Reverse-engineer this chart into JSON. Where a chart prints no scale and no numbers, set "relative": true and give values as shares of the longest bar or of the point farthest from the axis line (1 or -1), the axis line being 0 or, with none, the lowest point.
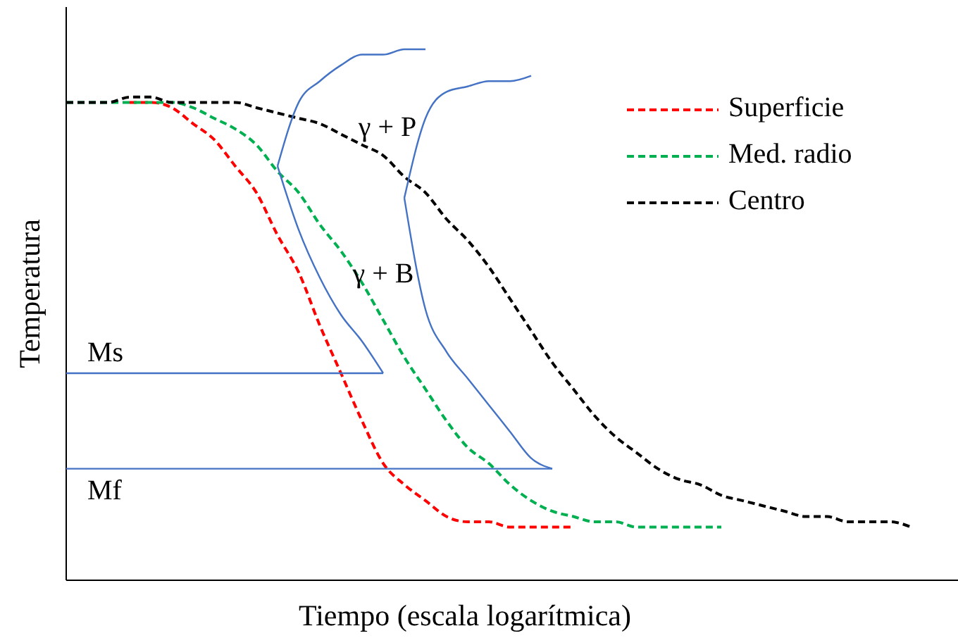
{
  "chart_data": {
    "type": "line",
    "relative": true,
    "xlabel": "Tiempo (escala logarítmica)",
    "ylabel": "Temperatura",
    "legend": "top right",
    "marker": "none",
    "categories": [
      null,
      null,
      null,
      null,
      null,
      null,
      null,
      null,
      null,
      null,
      null,
      null,
      null,
      null,
      null,
      null,
      null,
      null,
      null,
      null,
      null,
      null,
      null,
      null,
      null,
      null,
      null,
      null,
      null,
      null,
      null,
      null,
      null,
      null,
      null,
      null,
      null,
      null,
      null,
      null,
      null,
      null,
      null
    ],
    "series": [
      {
        "name": "Superficie",
        "color": "#ff0000",
        "line_style": "dashed",
        "values": [
          null,
          null,
          null,
          0.9,
          0.9,
          0.89,
          0.86,
          0.83,
          0.78,
          0.73,
          0.65,
          0.58,
          0.48,
          0.39,
          0.3,
          0.22,
          0.18,
          0.15,
          0.12,
          0.11,
          0.11,
          0.1,
          0.1,
          0.1,
          0.1,
          null,
          null,
          null,
          null,
          null,
          null,
          null,
          null,
          null,
          null,
          null,
          null,
          null,
          null,
          null,
          null,
          null,
          null
        ]
      },
      {
        "name": "Med. radio",
        "color": "#00b050",
        "line_style": "dashed",
        "values": [
          0.9,
          0.9,
          0.9,
          0.9,
          0.9,
          0.9,
          0.89,
          0.87,
          0.85,
          0.82,
          0.77,
          0.73,
          0.67,
          0.62,
          0.56,
          0.49,
          0.42,
          0.36,
          0.3,
          0.25,
          0.22,
          0.18,
          0.15,
          0.13,
          0.12,
          0.11,
          0.11,
          0.1,
          0.1,
          0.1,
          0.1,
          0.1,
          null,
          null,
          null,
          null,
          null,
          null,
          null,
          null,
          null,
          null,
          null
        ]
      },
      {
        "name": "Centro",
        "color": "#000000",
        "line_style": "dashed",
        "values": [
          0.9,
          0.9,
          0.9,
          0.91,
          0.91,
          0.9,
          0.9,
          0.9,
          0.9,
          0.89,
          0.88,
          0.87,
          0.86,
          0.84,
          0.82,
          0.8,
          0.76,
          0.73,
          0.68,
          0.64,
          0.59,
          0.53,
          0.47,
          0.41,
          0.36,
          0.31,
          0.27,
          0.24,
          0.21,
          0.19,
          0.18,
          0.16,
          0.15,
          0.14,
          0.13,
          0.12,
          0.12,
          0.11,
          0.11,
          0.11,
          0.1,
          null,
          null
        ]
      },
      {
        "color": "#4472c4",
        "line_style": "solid",
        "values": [
          null,
          null,
          null,
          null,
          null,
          null,
          null,
          null,
          null,
          null,
          0.78,
          0.9,
          0.94,
          0.97,
          0.99,
          0.99,
          1.0,
          1.0,
          null,
          null,
          null,
          null,
          null,
          null,
          null,
          null,
          null,
          null,
          null,
          null,
          null,
          null,
          null,
          null,
          null,
          null,
          null,
          null,
          null,
          null,
          null,
          null,
          null
        ]
      },
      {
        "color": "#4472c4",
        "line_style": "solid",
        "values": [
          null,
          null,
          null,
          null,
          null,
          null,
          null,
          null,
          null,
          null,
          0.78,
          0.66,
          0.57,
          0.5,
          0.45,
          0.39,
          null,
          null,
          null,
          null,
          null,
          null,
          null,
          null,
          null,
          null,
          null,
          null,
          null,
          null,
          null,
          null,
          null,
          null,
          null,
          null,
          null,
          null,
          null,
          null,
          null,
          null,
          null
        ]
      },
      {
        "color": "#4472c4",
        "line_style": "solid",
        "values": [
          0.39,
          0.39,
          0.39,
          0.39,
          0.39,
          0.39,
          0.39,
          0.39,
          0.39,
          0.39,
          0.39,
          0.39,
          0.39,
          0.39,
          0.39,
          0.39,
          null,
          null,
          null,
          null,
          null,
          null,
          null,
          null,
          null,
          null,
          null,
          null,
          null,
          null,
          null,
          null,
          null,
          null,
          null,
          null,
          null,
          null,
          null,
          null,
          null,
          null,
          null
        ]
      },
      {
        "color": "#4472c4",
        "line_style": "solid",
        "values": [
          null,
          null,
          null,
          null,
          null,
          null,
          null,
          null,
          null,
          null,
          null,
          null,
          null,
          null,
          null,
          null,
          0.72,
          0.87,
          0.92,
          0.93,
          0.94,
          0.94,
          0.95,
          null,
          null,
          null,
          null,
          null,
          null,
          null,
          null,
          null,
          null,
          null,
          null,
          null,
          null,
          null,
          null,
          null,
          null,
          null,
          null
        ]
      },
      {
        "color": "#4472c4",
        "line_style": "solid",
        "values": [
          null,
          null,
          null,
          null,
          null,
          null,
          null,
          null,
          null,
          null,
          null,
          null,
          null,
          null,
          null,
          null,
          0.72,
          0.51,
          0.43,
          0.38,
          0.33,
          0.28,
          0.23,
          0.21,
          null,
          null,
          null,
          null,
          null,
          null,
          null,
          null,
          null,
          null,
          null,
          null,
          null,
          null,
          null,
          null,
          null,
          null,
          null
        ]
      },
      {
        "color": "#4472c4",
        "line_style": "solid",
        "values": [
          0.21,
          0.21,
          0.21,
          0.21,
          0.21,
          0.21,
          0.21,
          0.21,
          0.21,
          0.21,
          0.21,
          0.21,
          0.21,
          0.21,
          0.21,
          0.21,
          0.21,
          0.21,
          0.21,
          0.21,
          0.21,
          0.21,
          0.21,
          0.21,
          null,
          null,
          null,
          null,
          null,
          null,
          null,
          null,
          null,
          null,
          null,
          null,
          null,
          null,
          null,
          null,
          null,
          null,
          null
        ]
      }
    ],
    "annotations": [
      "γ + P",
      "γ + B",
      "Ms",
      "Mf"
    ]
  }
}
